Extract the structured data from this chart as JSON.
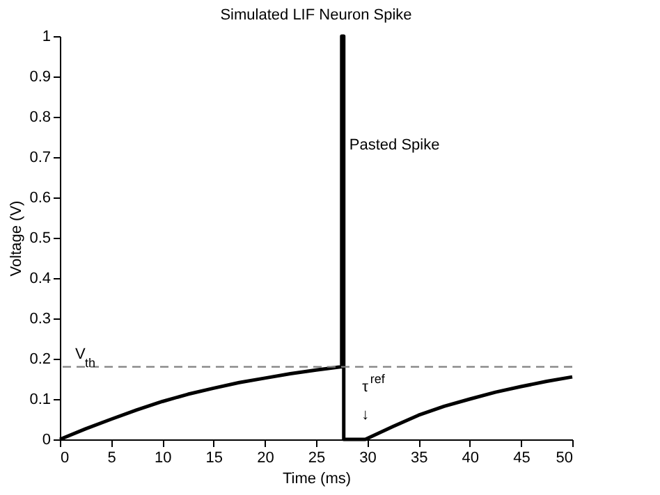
{
  "chart_data": {
    "type": "line",
    "title": "Simulated LIF Neuron Spike",
    "xlabel": "Time (ms)",
    "ylabel": "Voltage (V)",
    "series": [
      {
        "color": "#000000",
        "x": [
          0,
          2.5,
          5,
          7.5,
          10,
          12.5,
          15,
          17.5,
          20,
          22.5,
          25,
          27.5,
          27.5,
          27.7,
          27.7,
          29.8,
          32.5,
          35,
          37.5,
          40,
          42.5,
          45,
          47.5,
          50
        ],
        "values": [
          0,
          0.026,
          0.05,
          0.073,
          0.094,
          0.112,
          0.127,
          0.141,
          0.152,
          0.163,
          0.172,
          0.18,
          1,
          1,
          0,
          0,
          0.032,
          0.06,
          0.082,
          0.1,
          0.117,
          0.131,
          0.144,
          0.155
        ]
      }
    ],
    "xlim": [
      0,
      50
    ],
    "xticks": [
      0,
      5,
      10,
      15,
      20,
      25,
      30,
      35,
      40,
      45,
      50
    ],
    "ylim": [
      0,
      1
    ],
    "yticks": [
      0,
      0.1,
      0.2,
      0.3,
      0.4,
      0.5,
      0.6,
      0.7,
      0.8,
      0.9,
      1
    ],
    "grid": false,
    "line_style": "solid",
    "marker": "none",
    "ref_lines": [
      {
        "axis": "y",
        "value": 0.18,
        "label": "V$_{th}$",
        "color": "#808080",
        "line_style": "dashed"
      }
    ],
    "annotations": [
      "Pasted Spike",
      "τ$^{ref}$",
      "↓"
    ]
  }
}
